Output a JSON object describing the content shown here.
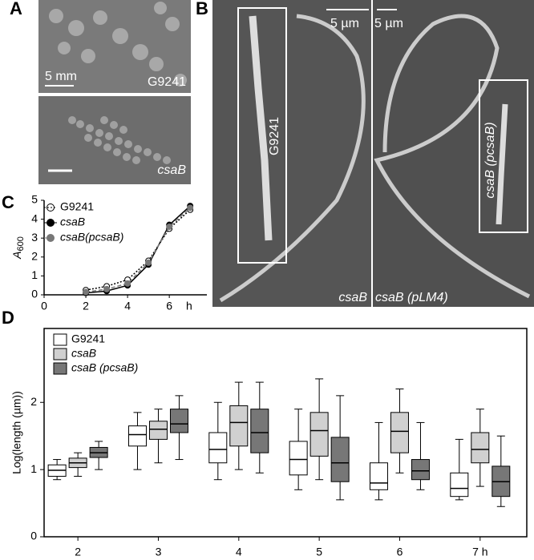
{
  "panel_labels": [
    "A",
    "B",
    "C",
    "D"
  ],
  "images": {
    "a_top_scale": "5 mm",
    "a_top_label": "G9241",
    "a_bottom_label": "csaB",
    "b_scale_left": "5 µm",
    "b_scale_right": "5 µm",
    "b_inset_left": "G9241",
    "b_inset_right": "csaB (pcsaB)",
    "b_left_label": "csaB",
    "b_right_label": "csaB (pLM4)"
  },
  "chart_data": [
    {
      "type": "line",
      "y_label": "A",
      "y_label_subscript": "600",
      "x_label": "h",
      "x": [
        2,
        3,
        4,
        5,
        6,
        7
      ],
      "series": [
        {
          "name": "G9241",
          "color": "#000000",
          "marker_fill": "#ffffff",
          "line_style": "dotted",
          "values": [
            0.25,
            0.45,
            0.8,
            1.8,
            3.5,
            4.5
          ]
        },
        {
          "name": "csaB",
          "color": "#000000",
          "marker_fill": "#000000",
          "line_style": "solid",
          "values": [
            0.1,
            0.2,
            0.5,
            1.6,
            3.7,
            4.7
          ]
        },
        {
          "name": "csaB(pcsaB)",
          "color": "#777777",
          "marker_fill": "#777777",
          "line_style": "dashed",
          "values": [
            0.15,
            0.3,
            0.6,
            1.7,
            3.6,
            4.6
          ]
        }
      ],
      "xlim": [
        0,
        7.8
      ],
      "ylim": [
        0,
        5
      ],
      "xticks": [
        0,
        2,
        4,
        6
      ],
      "yticks": [
        0,
        1,
        2,
        3,
        4,
        5
      ]
    },
    {
      "type": "box",
      "y_label": "Log(length (µm))",
      "categories": [
        "2",
        "3",
        "4",
        "5",
        "6",
        "7 h"
      ],
      "series": [
        {
          "name": "G9241",
          "color": "#ffffff",
          "values": [
            {
              "low": 0.85,
              "q1": 0.9,
              "median": 0.99,
              "q3": 1.07,
              "high": 1.15
            },
            {
              "low": 1.0,
              "q1": 1.35,
              "median": 1.52,
              "q3": 1.65,
              "high": 1.85
            },
            {
              "low": 0.85,
              "q1": 1.1,
              "median": 1.3,
              "q3": 1.55,
              "high": 2.0
            },
            {
              "low": 0.7,
              "q1": 0.92,
              "median": 1.15,
              "q3": 1.42,
              "high": 1.9
            },
            {
              "low": 0.55,
              "q1": 0.7,
              "median": 0.8,
              "q3": 1.1,
              "high": 1.7
            },
            {
              "low": 0.55,
              "q1": 0.6,
              "median": 0.72,
              "q3": 0.95,
              "high": 1.45
            }
          ]
        },
        {
          "name": "csaB",
          "color": "#d0d0d0",
          "values": [
            {
              "low": 0.9,
              "q1": 1.03,
              "median": 1.1,
              "q3": 1.17,
              "high": 1.25
            },
            {
              "low": 1.1,
              "q1": 1.45,
              "median": 1.6,
              "q3": 1.72,
              "high": 1.9
            },
            {
              "low": 1.0,
              "q1": 1.35,
              "median": 1.7,
              "q3": 1.95,
              "high": 2.3
            },
            {
              "low": 0.85,
              "q1": 1.2,
              "median": 1.58,
              "q3": 1.85,
              "high": 2.35
            },
            {
              "low": 0.95,
              "q1": 1.25,
              "median": 1.57,
              "q3": 1.85,
              "high": 2.2
            },
            {
              "low": 0.75,
              "q1": 1.1,
              "median": 1.3,
              "q3": 1.55,
              "high": 1.9
            }
          ]
        },
        {
          "name": "csaB (pcsaB)",
          "color": "#777777",
          "values": [
            {
              "low": 1.0,
              "q1": 1.18,
              "median": 1.25,
              "q3": 1.33,
              "high": 1.42
            },
            {
              "low": 1.15,
              "q1": 1.55,
              "median": 1.68,
              "q3": 1.9,
              "high": 2.1
            },
            {
              "low": 0.95,
              "q1": 1.25,
              "median": 1.55,
              "q3": 1.9,
              "high": 2.3
            },
            {
              "low": 0.55,
              "q1": 0.82,
              "median": 1.1,
              "q3": 1.48,
              "high": 2.1
            },
            {
              "low": 0.7,
              "q1": 0.85,
              "median": 0.98,
              "q3": 1.15,
              "high": 1.7
            },
            {
              "low": 0.45,
              "q1": 0.6,
              "median": 0.82,
              "q3": 1.05,
              "high": 1.5
            }
          ]
        }
      ],
      "ylim": [
        0,
        3.1
      ],
      "yticks": [
        0,
        1,
        2
      ]
    }
  ]
}
